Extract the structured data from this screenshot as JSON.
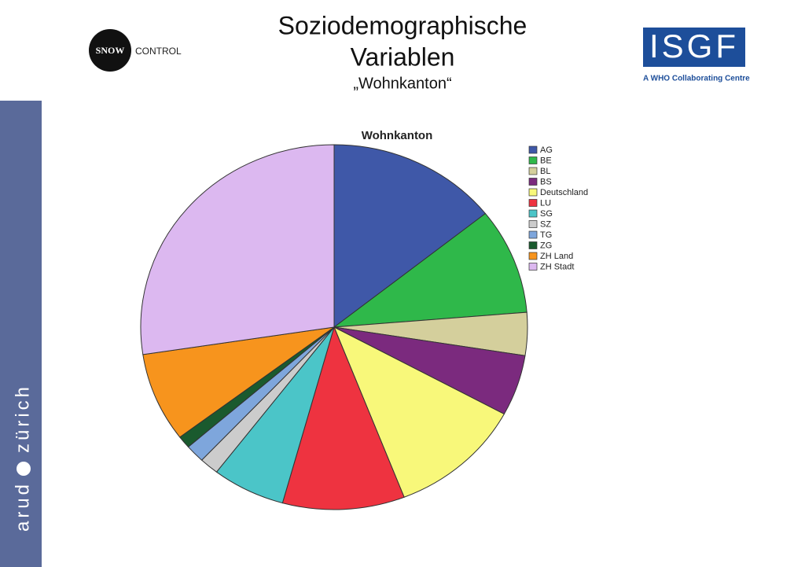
{
  "slide": {
    "title_lines": [
      "Soziodemographische",
      "Variablen"
    ],
    "subtitle": "„Wohnkanton“"
  },
  "logos": {
    "snow": "SNOW",
    "control": "CONTROL",
    "isgf": "ISGF",
    "isgf_tagline": "A WHO Collaborating Centre",
    "sidebar_left": "arud",
    "sidebar_right": "zürich"
  },
  "chart_data": {
    "type": "pie",
    "title": "Wohnkanton",
    "categories": [
      "AG",
      "BE",
      "BL",
      "BS",
      "Deutschland",
      "LU",
      "SG",
      "SZ",
      "TG",
      "ZG",
      "ZH Land",
      "ZH Stadt"
    ],
    "values": [
      14.3,
      9.4,
      3.8,
      5.4,
      11.2,
      10.2,
      6.1,
      1.6,
      1.6,
      1.1,
      7.9,
      27.4
    ],
    "colors": [
      "#3f58a8",
      "#2fb84a",
      "#d4cf9c",
      "#7b2a7e",
      "#f8f87a",
      "#ee3340",
      "#4bc5c8",
      "#cccccc",
      "#7ea6dc",
      "#1a5a2e",
      "#f7941d",
      "#dcb8f0"
    ],
    "legend": "top-right"
  }
}
